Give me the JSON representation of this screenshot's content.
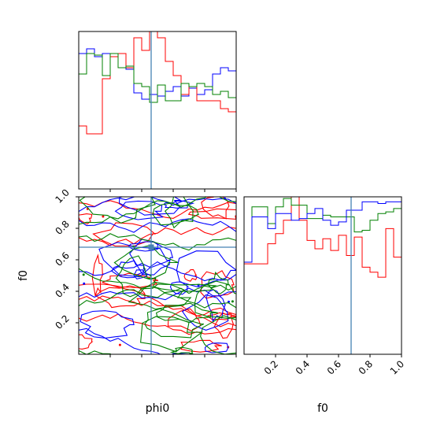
{
  "chart_data": [
    {
      "panel": "phi0-marginal",
      "type": "histogram",
      "x_param": "phi0",
      "xlim": [
        0,
        1
      ],
      "bins": 20,
      "truth": 0.46,
      "tick_labels": [],
      "series": [
        {
          "color": "#0000ff",
          "counts": [
            0.86,
            0.89,
            0.84,
            0.86,
            0.84,
            0.86,
            0.76,
            0.61,
            0.57,
            0.6,
            0.59,
            0.62,
            0.65,
            0.59,
            0.64,
            0.6,
            0.63,
            0.73,
            0.77,
            0.75
          ]
        },
        {
          "color": "#ff0000",
          "counts": [
            0.4,
            0.35,
            0.35,
            0.7,
            0.84,
            0.86,
            0.77,
            0.96,
            0.88,
            1.1,
            0.96,
            0.81,
            0.72,
            0.6,
            0.65,
            0.56,
            0.56,
            0.56,
            0.51,
            0.49
          ]
        },
        {
          "color": "#008000",
          "counts": [
            0.73,
            0.86,
            0.85,
            0.72,
            0.86,
            0.77,
            0.78,
            0.67,
            0.65,
            0.55,
            0.66,
            0.56,
            0.56,
            0.67,
            0.65,
            0.67,
            0.65,
            0.6,
            0.62,
            0.58
          ]
        }
      ]
    },
    {
      "panel": "phi0-f0-contours",
      "type": "contour",
      "x_param": "phi0",
      "y_param": "f0",
      "xlim": [
        0,
        1
      ],
      "ylim": [
        0,
        1
      ],
      "truth": [
        0.46,
        0.68
      ],
      "series_colors": [
        "#ff0000",
        "#0000ff",
        "#008000"
      ],
      "x_tick_labels": [],
      "y_tick_labels": [
        "0.2",
        "0.4",
        "0.6",
        "0.8",
        "1.0"
      ],
      "ylabel": "f0"
    },
    {
      "panel": "f0-marginal",
      "type": "histogram",
      "x_param": "f0",
      "xlim": [
        0,
        1
      ],
      "bins": 20,
      "truth": 0.68,
      "tick_labels": [
        "0.2",
        "0.4",
        "0.6",
        "0.8",
        "1.0"
      ],
      "xlabel": "f0",
      "series": [
        {
          "color": "#ff0000",
          "counts": [
            0.54,
            0.54,
            0.54,
            0.66,
            0.72,
            0.8,
            0.94,
            0.8,
            0.68,
            0.63,
            0.69,
            0.62,
            0.71,
            0.59,
            0.7,
            0.52,
            0.49,
            0.46,
            0.75,
            0.58
          ]
        },
        {
          "color": "#008000",
          "counts": [
            0.55,
            0.88,
            0.88,
            0.78,
            0.88,
            0.93,
            0.89,
            0.89,
            0.81,
            0.81,
            0.83,
            0.82,
            0.82,
            0.82,
            0.73,
            0.74,
            0.8,
            0.84,
            0.85,
            0.87
          ]
        },
        {
          "color": "#0000ff",
          "counts": [
            0.55,
            0.82,
            0.82,
            0.75,
            0.84,
            0.84,
            0.8,
            0.81,
            0.84,
            0.87,
            0.8,
            0.77,
            0.79,
            0.86,
            0.86,
            0.91,
            0.91,
            0.9,
            0.91,
            0.91
          ]
        }
      ]
    }
  ],
  "x_axis_label_left": "phi0",
  "truth_color": "#4682b4"
}
